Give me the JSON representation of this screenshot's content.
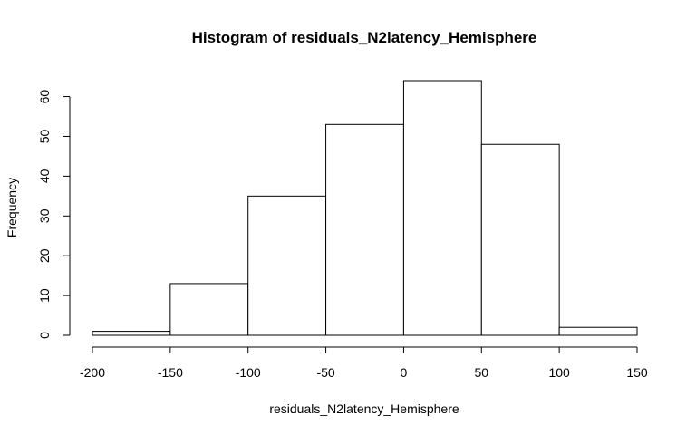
{
  "chart_data": {
    "type": "bar",
    "title": "Histogram of residuals_N2latency_Hemisphere",
    "xlabel": "residuals_N2latency_Hemisphere",
    "ylabel": "Frequency",
    "bins": [
      {
        "from": -200,
        "to": -150,
        "count": 1
      },
      {
        "from": -150,
        "to": -100,
        "count": 13
      },
      {
        "from": -100,
        "to": -50,
        "count": 35
      },
      {
        "from": -50,
        "to": 0,
        "count": 53
      },
      {
        "from": 0,
        "to": 50,
        "count": 64
      },
      {
        "from": 50,
        "to": 100,
        "count": 48
      },
      {
        "from": 100,
        "to": 150,
        "count": 2
      }
    ],
    "xlim": [
      -200,
      150
    ],
    "ylim": [
      0,
      64
    ],
    "x_ticks": [
      -200,
      -150,
      -100,
      -50,
      0,
      50,
      100,
      150
    ],
    "y_ticks": [
      0,
      10,
      20,
      30,
      40,
      50,
      60
    ],
    "grid": false,
    "colors": {
      "bar_fill": "#ffffff",
      "bar_stroke": "#000000"
    }
  }
}
